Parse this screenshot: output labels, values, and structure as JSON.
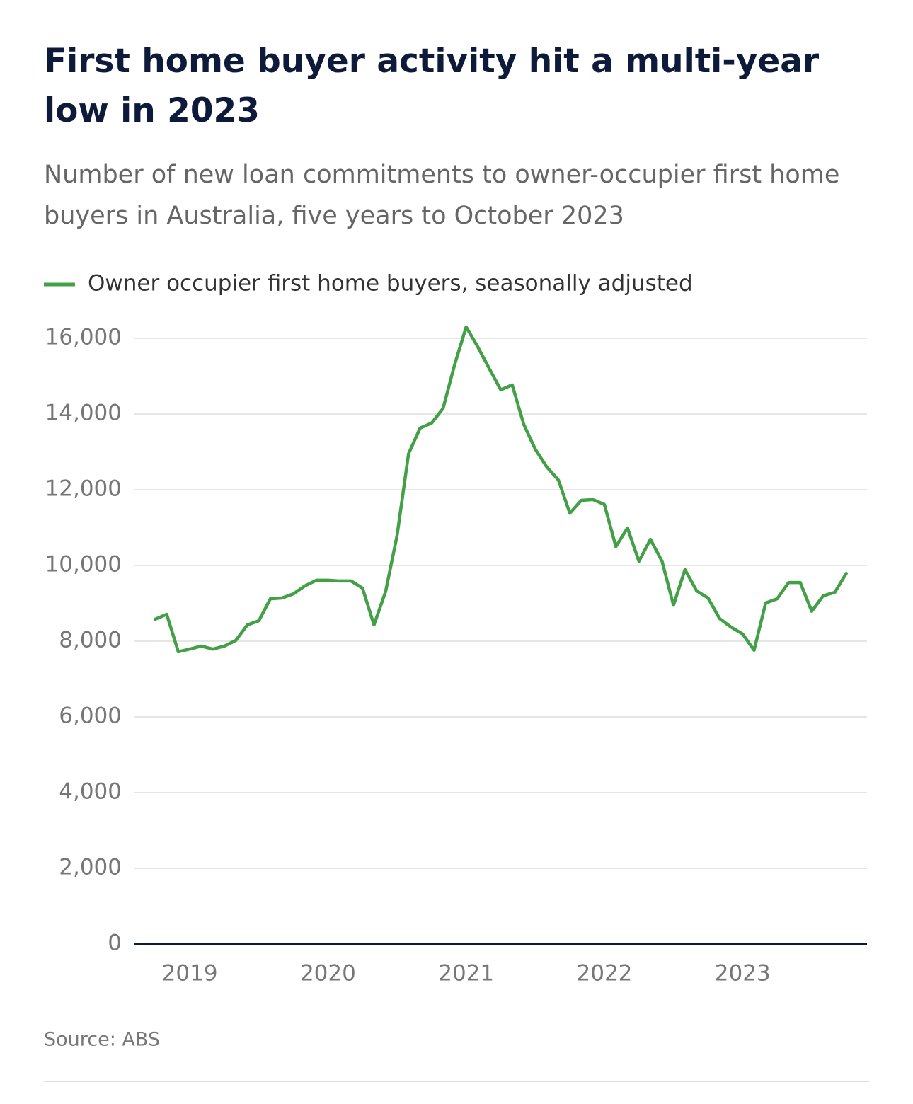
{
  "chart_data": {
    "type": "line",
    "title": "First home buyer activity hit a multi-year low in 2023",
    "subtitle": "Number of new loan commitments to owner-occupier first home buyers in Australia, five years to October 2023",
    "source": "Source: ABS",
    "x": [
      2018.75,
      2018.833,
      2018.917,
      2019,
      2019.083,
      2019.167,
      2019.25,
      2019.333,
      2019.417,
      2019.5,
      2019.583,
      2019.667,
      2019.75,
      2019.833,
      2019.917,
      2020,
      2020.083,
      2020.167,
      2020.25,
      2020.333,
      2020.417,
      2020.5,
      2020.583,
      2020.667,
      2020.75,
      2020.833,
      2020.917,
      2021,
      2021.083,
      2021.167,
      2021.25,
      2021.333,
      2021.417,
      2021.5,
      2021.583,
      2021.667,
      2021.75,
      2021.833,
      2021.917,
      2022,
      2022.083,
      2022.167,
      2022.25,
      2022.333,
      2022.417,
      2022.5,
      2022.583,
      2022.667,
      2022.75,
      2022.833,
      2022.917,
      2023,
      2023.083,
      2023.167,
      2023.25,
      2023.333,
      2023.417,
      2023.5,
      2023.583,
      2023.667,
      2023.75
    ],
    "series": [
      {
        "name": "Owner occupier first home buyers, seasonally adjusted",
        "color": "#43a047",
        "values": [
          8580,
          8710,
          7720,
          7790,
          7870,
          7790,
          7870,
          8020,
          8430,
          8540,
          9120,
          9140,
          9250,
          9460,
          9610,
          9610,
          9590,
          9590,
          9400,
          8430,
          9310,
          10790,
          12950,
          13630,
          13760,
          14150,
          15310,
          16300,
          15780,
          15200,
          14640,
          14770,
          13720,
          13070,
          12600,
          12260,
          11380,
          11720,
          11740,
          11610,
          10500,
          10990,
          10110,
          10690,
          10110,
          8950,
          9890,
          9330,
          9140,
          8600,
          8370,
          8190,
          7760,
          9010,
          9120,
          9550,
          9550,
          8790,
          9200,
          9290,
          9790
        ]
      }
    ],
    "xlim": [
      2018.6,
      2023.9
    ],
    "xticks": [
      2019,
      2020,
      2021,
      2022,
      2023
    ],
    "ylim": [
      0,
      16000
    ],
    "yticks": [
      0,
      {
        "value": 2000,
        "label": "2,000"
      },
      {
        "value": 4000,
        "label": "4,000"
      },
      {
        "value": 6000,
        "label": "6,000"
      },
      {
        "value": 8000,
        "label": "8,000"
      },
      {
        "value": 10000,
        "label": "10,000"
      },
      {
        "value": 12000,
        "label": "12,000"
      },
      {
        "value": 14000,
        "label": "14,000"
      },
      {
        "value": 16000,
        "label": "16,000"
      }
    ],
    "grid": true
  }
}
